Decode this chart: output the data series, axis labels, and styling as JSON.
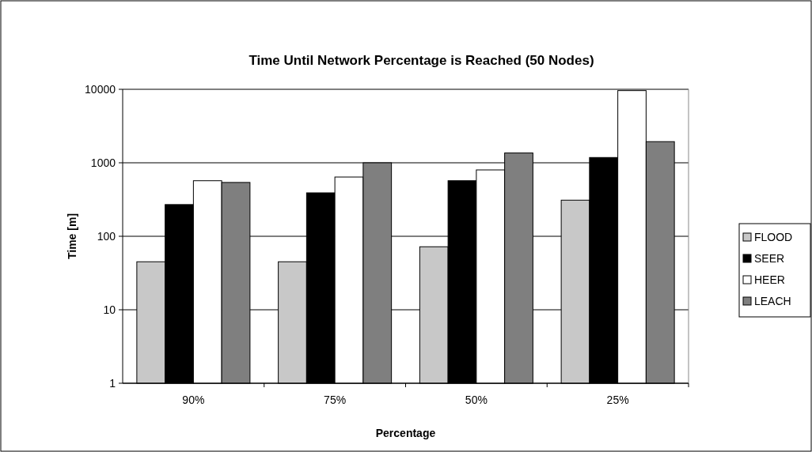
{
  "chart_data": {
    "type": "bar",
    "title": "Time Until Network Percentage is Reached (50 Nodes)",
    "xlabel": "Percentage",
    "ylabel": "Time [m]",
    "categories": [
      "90%",
      "75%",
      "50%",
      "25%"
    ],
    "series": [
      {
        "name": "FLOOD",
        "color": "#c8c8c8",
        "values": [
          45,
          45,
          72,
          310
        ]
      },
      {
        "name": "SEER",
        "color": "#000000",
        "values": [
          270,
          390,
          570,
          1180
        ]
      },
      {
        "name": "HEER",
        "color": "#ffffff",
        "values": [
          570,
          640,
          800,
          9600
        ]
      },
      {
        "name": "LEACH",
        "color": "#7f7f7f",
        "values": [
          540,
          1000,
          1360,
          1940
        ]
      }
    ],
    "log": true,
    "ylim": [
      1,
      10000
    ],
    "yticks": [
      1,
      10,
      100,
      1000,
      10000
    ],
    "grid": "y",
    "legend": "right"
  }
}
